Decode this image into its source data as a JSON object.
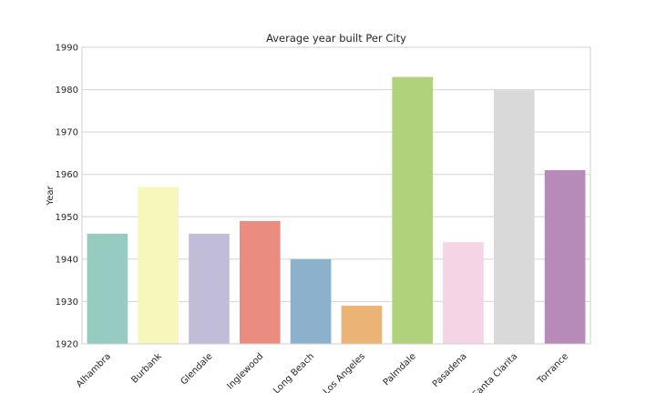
{
  "chart_data": {
    "type": "bar",
    "title": "Average year built Per City",
    "xlabel": "",
    "ylabel": "Year",
    "ylim": [
      1920,
      1990
    ],
    "yticks": [
      1920,
      1930,
      1940,
      1950,
      1960,
      1970,
      1980,
      1990
    ],
    "grid": true,
    "categories": [
      "Alhambra",
      "Burbank",
      "Glendale",
      "Inglewood",
      "Long Beach",
      "Los Angeles",
      "Palmdale",
      "Pasadena",
      "Santa Clarita",
      "Torrance"
    ],
    "values": [
      1946,
      1957,
      1946,
      1949,
      1940,
      1929,
      1983,
      1944,
      1980,
      1961
    ],
    "colors": [
      "#96cbc1",
      "#f7f7bb",
      "#c1bdd8",
      "#eb8c80",
      "#8cb1cd",
      "#ecb474",
      "#b0d27b",
      "#f5d4e6",
      "#d9d9d9",
      "#b68ab9"
    ]
  }
}
